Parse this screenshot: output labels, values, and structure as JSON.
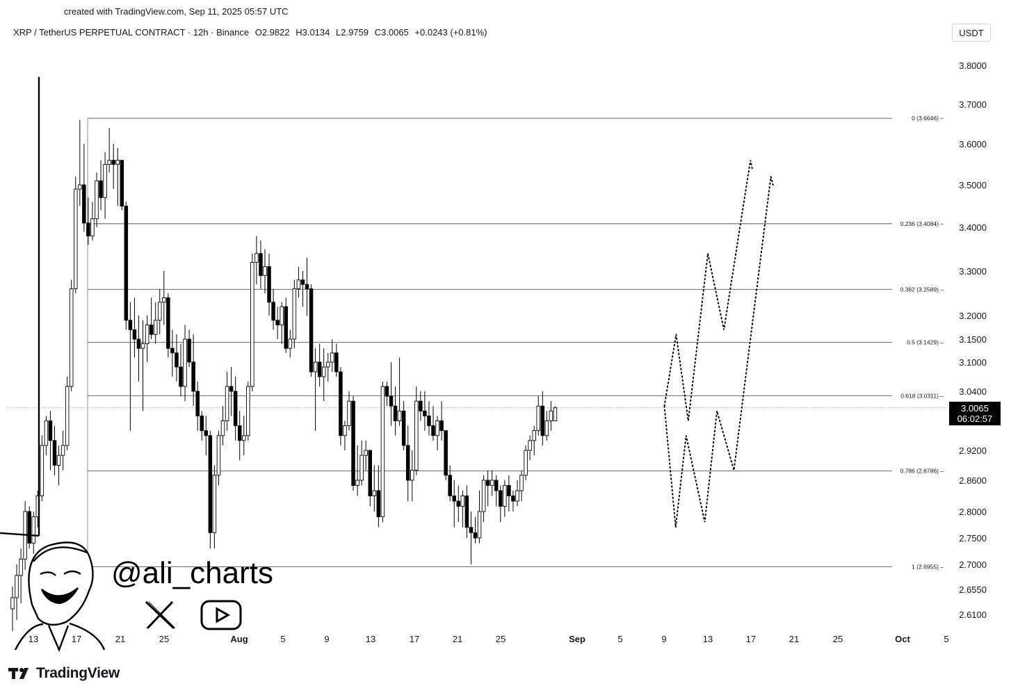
{
  "credit": "created with TradingView.com, Sep 11, 2025 05:57 UTC",
  "header": {
    "symbol": "XRP / TetherUS PERPETUAL CONTRACT · 12h · Binance",
    "open": "O2.9822",
    "high": "H3.0134",
    "low": "L2.9759",
    "close": "C3.0065",
    "change": "+0.0243 (+0.81%)"
  },
  "unit_button": "USDT",
  "price_badge": {
    "price": "3.0065",
    "countdown": "06:02:57"
  },
  "watermark": {
    "handle": "@ali_charts",
    "icons": [
      "x-logo-icon",
      "youtube-icon"
    ]
  },
  "brand": "TradingView",
  "colors": {
    "up": "#ffffff",
    "down": "#000000",
    "line": "#000000",
    "badge": "#000000"
  },
  "chart_data": {
    "type": "candlestick",
    "y_axis_labels": [
      "3.8000",
      "3.7000",
      "3.6000",
      "3.5000",
      "3.4000",
      "3.3000",
      "3.2000",
      "3.1500",
      "3.1000",
      "3.0400",
      "2.9200",
      "2.8600",
      "2.8000",
      "2.7500",
      "2.7000",
      "2.6550",
      "2.6100"
    ],
    "x_axis_labels": [
      "13",
      "17",
      "21",
      "25",
      "Aug",
      "5",
      "9",
      "13",
      "17",
      "21",
      "25",
      "Sep",
      "5",
      "9",
      "13",
      "17",
      "21",
      "25",
      "Oct",
      "5"
    ],
    "fib_levels": [
      {
        "label": "0 (3.6646)",
        "value": 3.6646
      },
      {
        "label": "0.236 (3.4084)",
        "value": 3.4084
      },
      {
        "label": "0.382 (3.2589)",
        "value": 3.2589
      },
      {
        "label": "0.5 (3.1429)",
        "value": 3.1429
      },
      {
        "label": "0.618 (3.0311)",
        "value": 3.0311
      },
      {
        "label": "0.786 (2.8786)",
        "value": 2.8786
      },
      {
        "label": "1 (2.6955)",
        "value": 2.6955
      }
    ],
    "current_price": 3.0065,
    "candles": [
      {
        "o": 2.62,
        "h": 2.66,
        "l": 2.58,
        "c": 2.64
      },
      {
        "o": 2.64,
        "h": 2.7,
        "l": 2.6,
        "c": 2.68
      },
      {
        "o": 2.68,
        "h": 2.73,
        "l": 2.63,
        "c": 2.71
      },
      {
        "o": 2.71,
        "h": 2.82,
        "l": 2.69,
        "c": 2.8
      },
      {
        "o": 2.8,
        "h": 2.81,
        "l": 2.73,
        "c": 2.74
      },
      {
        "o": 2.74,
        "h": 2.8,
        "l": 2.72,
        "c": 2.79
      },
      {
        "o": 2.79,
        "h": 2.84,
        "l": 2.77,
        "c": 2.83
      },
      {
        "o": 2.83,
        "h": 2.95,
        "l": 2.82,
        "c": 2.93
      },
      {
        "o": 2.93,
        "h": 2.99,
        "l": 2.91,
        "c": 2.98
      },
      {
        "o": 2.98,
        "h": 3.0,
        "l": 2.88,
        "c": 2.94
      },
      {
        "o": 2.94,
        "h": 2.97,
        "l": 2.87,
        "c": 2.89
      },
      {
        "o": 2.89,
        "h": 2.93,
        "l": 2.85,
        "c": 2.91
      },
      {
        "o": 2.91,
        "h": 2.96,
        "l": 2.88,
        "c": 2.93
      },
      {
        "o": 2.93,
        "h": 3.07,
        "l": 2.92,
        "c": 3.05
      },
      {
        "o": 3.05,
        "h": 3.28,
        "l": 3.04,
        "c": 3.26
      },
      {
        "o": 3.26,
        "h": 3.52,
        "l": 3.25,
        "c": 3.49
      },
      {
        "o": 3.49,
        "h": 3.66,
        "l": 3.45,
        "c": 3.5
      },
      {
        "o": 3.5,
        "h": 3.6,
        "l": 3.39,
        "c": 3.41
      },
      {
        "o": 3.41,
        "h": 3.47,
        "l": 3.36,
        "c": 3.38
      },
      {
        "o": 3.38,
        "h": 3.46,
        "l": 3.37,
        "c": 3.42
      },
      {
        "o": 3.42,
        "h": 3.53,
        "l": 3.4,
        "c": 3.51
      },
      {
        "o": 3.51,
        "h": 3.56,
        "l": 3.44,
        "c": 3.47
      },
      {
        "o": 3.47,
        "h": 3.58,
        "l": 3.42,
        "c": 3.55
      },
      {
        "o": 3.55,
        "h": 3.64,
        "l": 3.53,
        "c": 3.56
      },
      {
        "o": 3.56,
        "h": 3.6,
        "l": 3.49,
        "c": 3.55
      },
      {
        "o": 3.55,
        "h": 3.59,
        "l": 3.45,
        "c": 3.56
      },
      {
        "o": 3.56,
        "h": 3.56,
        "l": 3.44,
        "c": 3.45
      },
      {
        "o": 3.45,
        "h": 3.46,
        "l": 3.17,
        "c": 3.19
      },
      {
        "o": 3.19,
        "h": 3.23,
        "l": 2.96,
        "c": 3.17
      },
      {
        "o": 3.17,
        "h": 3.24,
        "l": 3.11,
        "c": 3.15
      },
      {
        "o": 3.15,
        "h": 3.2,
        "l": 3.06,
        "c": 3.13
      },
      {
        "o": 3.13,
        "h": 3.19,
        "l": 3.0,
        "c": 3.14
      },
      {
        "o": 3.14,
        "h": 3.2,
        "l": 3.1,
        "c": 3.18
      },
      {
        "o": 3.18,
        "h": 3.24,
        "l": 3.15,
        "c": 3.16
      },
      {
        "o": 3.16,
        "h": 3.23,
        "l": 3.14,
        "c": 3.19
      },
      {
        "o": 3.19,
        "h": 3.26,
        "l": 3.16,
        "c": 3.23
      },
      {
        "o": 3.23,
        "h": 3.3,
        "l": 3.18,
        "c": 3.24
      },
      {
        "o": 3.24,
        "h": 3.25,
        "l": 3.11,
        "c": 3.13
      },
      {
        "o": 3.13,
        "h": 3.17,
        "l": 3.07,
        "c": 3.12
      },
      {
        "o": 3.12,
        "h": 3.16,
        "l": 3.06,
        "c": 3.09
      },
      {
        "o": 3.09,
        "h": 3.14,
        "l": 3.03,
        "c": 3.05
      },
      {
        "o": 3.05,
        "h": 3.18,
        "l": 3.02,
        "c": 3.15
      },
      {
        "o": 3.15,
        "h": 3.17,
        "l": 3.09,
        "c": 3.1
      },
      {
        "o": 3.1,
        "h": 3.16,
        "l": 3.01,
        "c": 3.04
      },
      {
        "o": 3.04,
        "h": 3.06,
        "l": 2.96,
        "c": 2.99
      },
      {
        "o": 2.99,
        "h": 3.0,
        "l": 2.94,
        "c": 2.96
      },
      {
        "o": 2.96,
        "h": 2.99,
        "l": 2.91,
        "c": 2.95
      },
      {
        "o": 2.95,
        "h": 2.96,
        "l": 2.73,
        "c": 2.76
      },
      {
        "o": 2.76,
        "h": 2.89,
        "l": 2.73,
        "c": 2.87
      },
      {
        "o": 2.87,
        "h": 2.96,
        "l": 2.85,
        "c": 2.95
      },
      {
        "o": 2.95,
        "h": 3.01,
        "l": 2.93,
        "c": 2.98
      },
      {
        "o": 2.98,
        "h": 3.08,
        "l": 2.96,
        "c": 3.05
      },
      {
        "o": 3.05,
        "h": 3.09,
        "l": 2.99,
        "c": 3.04
      },
      {
        "o": 3.04,
        "h": 3.07,
        "l": 2.94,
        "c": 2.97
      },
      {
        "o": 2.97,
        "h": 3.0,
        "l": 2.9,
        "c": 2.94
      },
      {
        "o": 2.94,
        "h": 2.99,
        "l": 2.91,
        "c": 2.95
      },
      {
        "o": 2.95,
        "h": 3.06,
        "l": 2.94,
        "c": 3.05
      },
      {
        "o": 3.05,
        "h": 3.34,
        "l": 3.04,
        "c": 3.32
      },
      {
        "o": 3.32,
        "h": 3.38,
        "l": 3.27,
        "c": 3.34
      },
      {
        "o": 3.34,
        "h": 3.37,
        "l": 3.26,
        "c": 3.29
      },
      {
        "o": 3.29,
        "h": 3.35,
        "l": 3.25,
        "c": 3.31
      },
      {
        "o": 3.31,
        "h": 3.34,
        "l": 3.2,
        "c": 3.23
      },
      {
        "o": 3.23,
        "h": 3.26,
        "l": 3.17,
        "c": 3.19
      },
      {
        "o": 3.19,
        "h": 3.22,
        "l": 3.15,
        "c": 3.18
      },
      {
        "o": 3.18,
        "h": 3.23,
        "l": 3.14,
        "c": 3.22
      },
      {
        "o": 3.22,
        "h": 3.24,
        "l": 3.12,
        "c": 3.13
      },
      {
        "o": 3.13,
        "h": 3.17,
        "l": 3.11,
        "c": 3.15
      },
      {
        "o": 3.15,
        "h": 3.28,
        "l": 3.13,
        "c": 3.26
      },
      {
        "o": 3.26,
        "h": 3.31,
        "l": 3.24,
        "c": 3.28
      },
      {
        "o": 3.28,
        "h": 3.3,
        "l": 3.22,
        "c": 3.27
      },
      {
        "o": 3.27,
        "h": 3.33,
        "l": 3.2,
        "c": 3.26
      },
      {
        "o": 3.26,
        "h": 3.27,
        "l": 3.07,
        "c": 3.08
      },
      {
        "o": 3.08,
        "h": 3.13,
        "l": 2.96,
        "c": 3.1
      },
      {
        "o": 3.1,
        "h": 3.14,
        "l": 3.05,
        "c": 3.07
      },
      {
        "o": 3.07,
        "h": 3.13,
        "l": 3.02,
        "c": 3.09
      },
      {
        "o": 3.09,
        "h": 3.12,
        "l": 3.06,
        "c": 3.1
      },
      {
        "o": 3.1,
        "h": 3.15,
        "l": 3.08,
        "c": 3.12
      },
      {
        "o": 3.12,
        "h": 3.14,
        "l": 3.07,
        "c": 3.08
      },
      {
        "o": 3.08,
        "h": 3.09,
        "l": 2.93,
        "c": 2.95
      },
      {
        "o": 2.95,
        "h": 2.98,
        "l": 2.92,
        "c": 2.97
      },
      {
        "o": 2.97,
        "h": 3.04,
        "l": 2.96,
        "c": 3.02
      },
      {
        "o": 3.02,
        "h": 3.03,
        "l": 2.84,
        "c": 2.85
      },
      {
        "o": 2.85,
        "h": 2.93,
        "l": 2.83,
        "c": 2.86
      },
      {
        "o": 2.86,
        "h": 2.94,
        "l": 2.85,
        "c": 2.91
      },
      {
        "o": 2.91,
        "h": 2.94,
        "l": 2.88,
        "c": 2.92
      },
      {
        "o": 2.92,
        "h": 2.92,
        "l": 2.81,
        "c": 2.83
      },
      {
        "o": 2.83,
        "h": 2.89,
        "l": 2.8,
        "c": 2.84
      },
      {
        "o": 2.84,
        "h": 2.89,
        "l": 2.77,
        "c": 2.79
      },
      {
        "o": 2.79,
        "h": 3.06,
        "l": 2.78,
        "c": 3.05
      },
      {
        "o": 3.05,
        "h": 3.06,
        "l": 3.01,
        "c": 3.03
      },
      {
        "o": 3.03,
        "h": 3.1,
        "l": 2.97,
        "c": 3.01
      },
      {
        "o": 3.01,
        "h": 3.05,
        "l": 2.95,
        "c": 2.98
      },
      {
        "o": 2.98,
        "h": 3.11,
        "l": 2.97,
        "c": 3.0
      },
      {
        "o": 3.0,
        "h": 3.02,
        "l": 2.92,
        "c": 2.93
      },
      {
        "o": 2.93,
        "h": 2.97,
        "l": 2.82,
        "c": 2.86
      },
      {
        "o": 2.86,
        "h": 2.92,
        "l": 2.82,
        "c": 2.88
      },
      {
        "o": 2.88,
        "h": 3.05,
        "l": 2.87,
        "c": 3.02
      },
      {
        "o": 3.02,
        "h": 3.04,
        "l": 2.98,
        "c": 3.0
      },
      {
        "o": 3.0,
        "h": 3.04,
        "l": 2.96,
        "c": 2.99
      },
      {
        "o": 2.99,
        "h": 3.02,
        "l": 2.95,
        "c": 2.97
      },
      {
        "o": 2.97,
        "h": 3.01,
        "l": 2.94,
        "c": 2.95
      },
      {
        "o": 2.95,
        "h": 2.99,
        "l": 2.92,
        "c": 2.98
      },
      {
        "o": 2.98,
        "h": 3.02,
        "l": 2.94,
        "c": 2.96
      },
      {
        "o": 2.96,
        "h": 2.96,
        "l": 2.86,
        "c": 2.87
      },
      {
        "o": 2.87,
        "h": 2.89,
        "l": 2.82,
        "c": 2.83
      },
      {
        "o": 2.83,
        "h": 2.86,
        "l": 2.77,
        "c": 2.82
      },
      {
        "o": 2.82,
        "h": 2.85,
        "l": 2.78,
        "c": 2.81
      },
      {
        "o": 2.81,
        "h": 2.84,
        "l": 2.77,
        "c": 2.83
      },
      {
        "o": 2.83,
        "h": 2.85,
        "l": 2.75,
        "c": 2.77
      },
      {
        "o": 2.77,
        "h": 2.8,
        "l": 2.7,
        "c": 2.76
      },
      {
        "o": 2.76,
        "h": 2.79,
        "l": 2.74,
        "c": 2.75
      },
      {
        "o": 2.75,
        "h": 2.84,
        "l": 2.74,
        "c": 2.8
      },
      {
        "o": 2.8,
        "h": 2.87,
        "l": 2.78,
        "c": 2.86
      },
      {
        "o": 2.86,
        "h": 2.88,
        "l": 2.81,
        "c": 2.85
      },
      {
        "o": 2.85,
        "h": 2.88,
        "l": 2.83,
        "c": 2.86
      },
      {
        "o": 2.86,
        "h": 2.87,
        "l": 2.81,
        "c": 2.84
      },
      {
        "o": 2.84,
        "h": 2.85,
        "l": 2.78,
        "c": 2.81
      },
      {
        "o": 2.81,
        "h": 2.86,
        "l": 2.79,
        "c": 2.85
      },
      {
        "o": 2.85,
        "h": 2.87,
        "l": 2.8,
        "c": 2.83
      },
      {
        "o": 2.83,
        "h": 2.84,
        "l": 2.8,
        "c": 2.82
      },
      {
        "o": 2.82,
        "h": 2.86,
        "l": 2.81,
        "c": 2.84
      },
      {
        "o": 2.84,
        "h": 2.88,
        "l": 2.82,
        "c": 2.87
      },
      {
        "o": 2.87,
        "h": 2.93,
        "l": 2.86,
        "c": 2.92
      },
      {
        "o": 2.92,
        "h": 2.95,
        "l": 2.9,
        "c": 2.94
      },
      {
        "o": 2.94,
        "h": 2.97,
        "l": 2.91,
        "c": 2.96
      },
      {
        "o": 2.96,
        "h": 3.03,
        "l": 2.95,
        "c": 3.01
      },
      {
        "o": 3.01,
        "h": 3.04,
        "l": 2.93,
        "c": 2.95
      },
      {
        "o": 2.95,
        "h": 3.0,
        "l": 2.94,
        "c": 2.98
      },
      {
        "o": 2.98,
        "h": 3.02,
        "l": 2.96,
        "c": 3.0
      },
      {
        "o": 2.98,
        "h": 3.01,
        "l": 2.98,
        "c": 3.0065
      }
    ],
    "triangle": {
      "apex_top": {
        "candle": 0,
        "price": 3.77
      },
      "apex_right_date": "Oct 5",
      "support": 2.754
    },
    "projection_paths": [
      [
        [
          3.0,
          3.01
        ],
        [
          3.27,
          3.16
        ],
        [
          3.55,
          2.98
        ],
        [
          4.0,
          3.34
        ],
        [
          4.37,
          3.17
        ],
        [
          4.98,
          3.56
        ],
        [
          5.02,
          3.54
        ]
      ],
      [
        [
          3.0,
          3.01
        ],
        [
          3.26,
          2.77
        ],
        [
          3.5,
          2.95
        ],
        [
          3.93,
          2.78
        ],
        [
          4.21,
          3.0
        ],
        [
          4.6,
          2.88
        ],
        [
          5.45,
          3.52
        ],
        [
          5.5,
          3.5
        ]
      ]
    ]
  }
}
